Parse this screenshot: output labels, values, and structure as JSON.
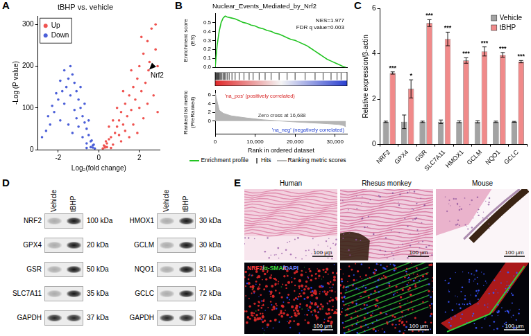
{
  "chart_data": [
    {
      "panel": "A",
      "type": "scatter",
      "title": "tBHP vs. vehicle",
      "x_label": "Log₂(fold change)",
      "y_label": "-Log (P value)",
      "xlim": [
        -3,
        3
      ],
      "xticks": [
        -2,
        0,
        2
      ],
      "ylim": [
        0,
        320
      ],
      "yticks": [
        0,
        100,
        200,
        300
      ],
      "grid": false,
      "legend": "upper left",
      "marker": "circle",
      "series": [
        {
          "name": "Up",
          "color": "#ef5350",
          "x": [
            0.3,
            0.4,
            0.5,
            0.6,
            0.7,
            0.8,
            0.9,
            1.0,
            1.0,
            1.1,
            1.1,
            1.2,
            1.3,
            1.3,
            1.4,
            1.5,
            1.5,
            1.6,
            1.7,
            1.7,
            1.8,
            1.9,
            1.9,
            2.0,
            2.0,
            2.1,
            2.2,
            2.2,
            2.3,
            2.4,
            2.4,
            2.5,
            2.6,
            2.6,
            2.7,
            2.8,
            2.8,
            2.9,
            2.9,
            0.5,
            0.7,
            0.9,
            1.2,
            1.6,
            2.1,
            2.45,
            0.2,
            0.3,
            0.4,
            0.25,
            0.6,
            0.35
          ],
          "values": [
            8,
            15,
            25,
            30,
            12,
            40,
            55,
            35,
            70,
            20,
            90,
            60,
            45,
            110,
            80,
            130,
            30,
            95,
            150,
            60,
            120,
            170,
            40,
            100,
            200,
            140,
            230,
            75,
            160,
            260,
            110,
            210,
            180,
            290,
            130,
            240,
            300,
            200,
            90,
            55,
            70,
            100,
            140,
            190,
            270,
            190,
            3,
            5,
            6,
            10,
            4,
            20
          ]
        },
        {
          "name": "Down",
          "color": "#4b5fd8",
          "x": [
            -0.3,
            -0.4,
            -0.5,
            -0.6,
            -0.6,
            -0.7,
            -0.8,
            -0.8,
            -0.9,
            -1.0,
            -1.0,
            -1.1,
            -1.1,
            -1.2,
            -1.2,
            -1.3,
            -1.3,
            -1.4,
            -1.4,
            -1.5,
            -1.5,
            -1.6,
            -1.7,
            -1.7,
            -1.8,
            -1.9,
            -1.9,
            -2.0,
            -2.1,
            -2.2,
            -2.3,
            -2.4,
            -2.5,
            -2.6,
            -2.8,
            -0.5,
            -0.7,
            -0.9,
            -0.2,
            -0.3,
            -0.4,
            -0.25,
            -0.6,
            -0.35
          ],
          "values": [
            10,
            20,
            35,
            50,
            15,
            65,
            80,
            30,
            100,
            120,
            55,
            140,
            75,
            160,
            95,
            180,
            40,
            200,
            130,
            170,
            60,
            150,
            190,
            110,
            140,
            165,
            70,
            120,
            135,
            90,
            105,
            60,
            80,
            45,
            30,
            70,
            110,
            150,
            3,
            5,
            6,
            12,
            4,
            22
          ]
        }
      ],
      "annotations": [
        {
          "text": "Nrf2",
          "x": 2.45,
          "y": 190
        }
      ]
    },
    {
      "panel": "B",
      "type": "line",
      "title": "Nuclear_Events_Mediated_by_Nrf2",
      "y_label": "Enrichment score (ES)",
      "xlim": [
        0,
        33000
      ],
      "ylim": [
        0,
        0.6
      ],
      "yticks": [
        {
          "value": 0,
          "label": "0.0"
        },
        0.1,
        0.2,
        0.3,
        0.4,
        0.5
      ],
      "tick_labels": "y",
      "series": [
        {
          "name": "Enrichment profile",
          "color": "#22c422",
          "x": [
            0,
            500,
            1000,
            1500,
            2000,
            2500,
            3000,
            4000,
            5000,
            6000,
            7000,
            8000,
            9000,
            10000,
            11000,
            12000,
            13000,
            14000,
            15000,
            16000,
            17000,
            18000,
            19000,
            20000,
            21000,
            22000,
            23000,
            24000,
            25000,
            26000,
            27000,
            28000,
            29000,
            30000,
            31000,
            32000,
            32688
          ],
          "values": [
            0,
            0.25,
            0.4,
            0.5,
            0.55,
            0.57,
            0.56,
            0.55,
            0.54,
            0.52,
            0.5,
            0.49,
            0.47,
            0.46,
            0.44,
            0.43,
            0.41,
            0.4,
            0.38,
            0.37,
            0.35,
            0.33,
            0.31,
            0.3,
            0.28,
            0.26,
            0.24,
            0.21,
            0.18,
            0.15,
            0.12,
            0.09,
            0.07,
            0.05,
            0.03,
            0.01,
            0
          ]
        }
      ],
      "annotations": [
        "NES=1.977",
        "FDR q value=0.003"
      ]
    },
    {
      "type": "rug",
      "xlim": [
        0,
        33000
      ],
      "tick_labels": false,
      "series": [
        {
          "name": "Hits",
          "color": "#000000",
          "x": [
            100,
            200,
            350,
            500,
            650,
            800,
            1000,
            1200,
            1400,
            1700,
            2000,
            2300,
            2600,
            3000,
            3500,
            4200,
            5000,
            6000,
            7200,
            8500,
            9500,
            11000,
            12500,
            14000,
            16000,
            18000,
            20000,
            22500,
            25000,
            27000,
            29000,
            30500,
            31500
          ]
        }
      ]
    },
    {
      "type": "area",
      "x_label": "Rank in ordered dataset",
      "y_label": "Ranked list metric (PreRanked)",
      "xlim": [
        0,
        33000
      ],
      "xticks": [
        0,
        {
          "value": 10000,
          "label": "10,000"
        },
        {
          "value": 20000,
          "label": "20,000"
        },
        {
          "value": 30000,
          "label": "30,000"
        }
      ],
      "ylim": [
        -3,
        7
      ],
      "yticks": [
        0,
        2,
        4,
        6
      ],
      "legend": "bottom",
      "series": [
        {
          "name": "Ranking metric scores",
          "color": "#b5b5b5",
          "x": [
            0,
            1000,
            2000,
            4000,
            8000,
            12000,
            16688,
            20000,
            24000,
            28000,
            31000,
            32000,
            32688
          ],
          "values": [
            6.5,
            2.5,
            1.8,
            1.2,
            0.7,
            0.3,
            0,
            -0.2,
            -0.4,
            -0.6,
            -0.8,
            -1.0,
            -1.3
          ]
        }
      ],
      "annotations": [
        "'na_pos' (positively correlated)",
        "Zero cross at 16,688",
        "'na_neg' (negatively correlated)"
      ]
    },
    {
      "panel": "C",
      "type": "bar",
      "categories": [
        "NRF2",
        "GPX4",
        "GSR",
        "SLC7A11",
        "HMOX1",
        "GCLM",
        "NQO1",
        "GCLC"
      ],
      "y_label": "Relative expression/β-actin",
      "ylim": [
        0,
        6
      ],
      "yticks": [
        0,
        2,
        4,
        6
      ],
      "legend": "upper right",
      "series": [
        {
          "name": "Vehicle",
          "color": "#a3a3a3",
          "values": [
            1,
            1,
            1,
            1,
            1,
            1,
            1,
            1
          ],
          "errors": [
            0.03,
            0.3,
            0.03,
            0.08,
            0.04,
            0.05,
            0.03,
            0.02
          ]
        },
        {
          "name": "tBHP",
          "color": "#f08a8a",
          "values": [
            3.15,
            2.45,
            5.35,
            4.65,
            3.7,
            4.1,
            3.95,
            3.65
          ],
          "errors": [
            0.05,
            0.4,
            0.15,
            0.3,
            0.12,
            0.2,
            0.1,
            0.05
          ],
          "significance": [
            "***",
            "*",
            "***",
            "***",
            "***",
            "***",
            "***",
            "***"
          ]
        }
      ]
    }
  ],
  "blots": {
    "panel": "D",
    "lanes": [
      "Vehicle",
      "tBHP"
    ],
    "groups": [
      {
        "rows": [
          {
            "protein": "NRF2",
            "size": "100 kDa"
          },
          {
            "protein": "GPX4",
            "size": "20 kDa"
          },
          {
            "protein": "GSR",
            "size": "50 kDa"
          },
          {
            "protein": "SLC7A11",
            "size": "35 kDa"
          },
          {
            "protein": "GAPDH",
            "size": "37 kDa"
          }
        ]
      },
      {
        "rows": [
          {
            "protein": "HMOX1",
            "size": "30 kDa"
          },
          {
            "protein": "GCLM",
            "size": "30 kDa"
          },
          {
            "protein": "NQO1",
            "size": "31 kDa"
          },
          {
            "protein": "GCLC",
            "size": "72 kDa"
          },
          {
            "protein": "GAPDH",
            "size": "37 kDa"
          }
        ]
      }
    ]
  },
  "histology": {
    "panel": "E",
    "columns": [
      "Human",
      "Rhesus monkey",
      "Mouse"
    ],
    "stain_label": "NRF2/α-SMA/DAPI",
    "stain_colors": [
      "#ff3b3b",
      "#3fdc3f",
      "#6f86ff"
    ],
    "scale_bar": "100 μm"
  }
}
